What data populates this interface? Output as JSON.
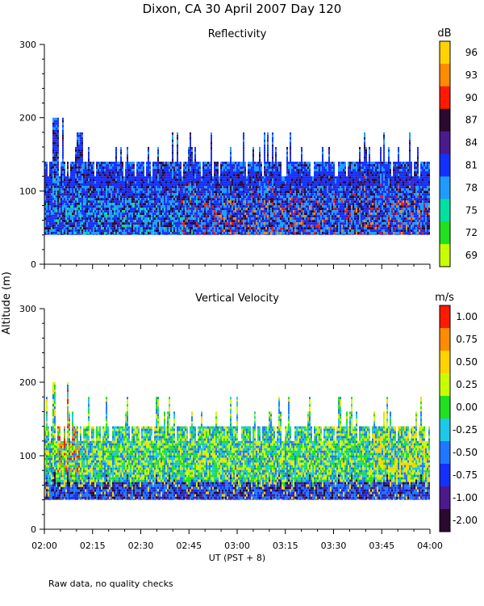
{
  "figure": {
    "title": "Dixon, CA 30 April 2007  Day 120",
    "y_axis_label": "Altitude (m)",
    "x_axis_label": "UT  (PST + 8)",
    "footnote": "Raw data, no quality checks"
  },
  "chart_data": [
    {
      "type": "heatmap",
      "title": "Reflectivity",
      "xlabel": "",
      "ylabel": "Altitude (m)",
      "x_range": [
        "02:00",
        "04:00"
      ],
      "ylim": [
        0,
        300
      ],
      "y_ticks": [
        0,
        100,
        200,
        300
      ],
      "data_altitude_range": [
        40,
        200
      ],
      "typical_top_m": 140,
      "colorbar": {
        "unit": "dB",
        "labels": [
          "96",
          "93",
          "90",
          "87",
          "84",
          "81",
          "78",
          "75",
          "72",
          "69"
        ],
        "colors": [
          "#ffd200",
          "#ff8c00",
          "#ff1a00",
          "#2a0a2e",
          "#4b1a8c",
          "#1430ff",
          "#1e9bff",
          "#00e0a0",
          "#20e020",
          "#c8ff00"
        ]
      }
    },
    {
      "type": "heatmap",
      "title": "Vertical Velocity",
      "xlabel": "UT  (PST + 8)",
      "ylabel": "Altitude (m)",
      "x_range": [
        "02:00",
        "04:00"
      ],
      "x_tick_labels": [
        "02:00",
        "02:15",
        "02:30",
        "02:45",
        "03:00",
        "03:15",
        "03:30",
        "03:45",
        "04:00"
      ],
      "ylim": [
        0,
        300
      ],
      "y_ticks": [
        0,
        100,
        200,
        300
      ],
      "data_altitude_range": [
        40,
        200
      ],
      "typical_top_m": 140,
      "colorbar": {
        "unit": "m/s",
        "labels": [
          "1.00",
          "0.75",
          "0.50",
          "0.25",
          "0.00",
          "-0.25",
          "-0.50",
          "-0.75",
          "-1.00",
          "-2.00"
        ],
        "colors": [
          "#ff1a00",
          "#ff8c00",
          "#ffd200",
          "#c8ff00",
          "#20e020",
          "#1ec8e8",
          "#1e78ff",
          "#1430ff",
          "#4b1a8c",
          "#2a0a2e"
        ]
      }
    }
  ]
}
